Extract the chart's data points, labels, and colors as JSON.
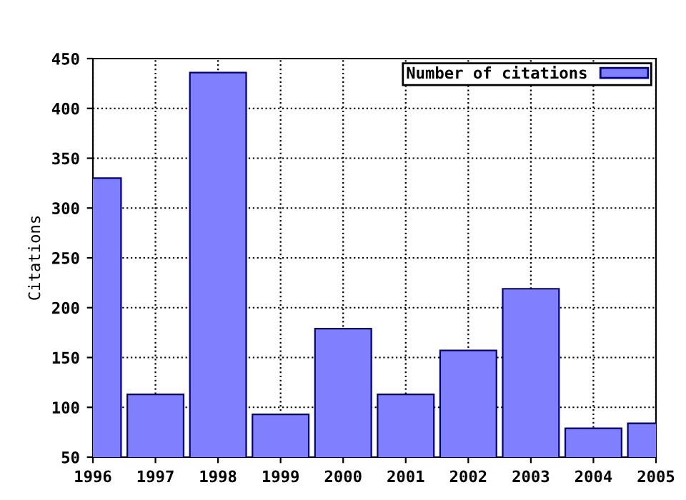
{
  "chart_data": {
    "type": "bar",
    "ylabel": "Citations",
    "x": [
      1996,
      1997,
      1998,
      1999,
      2000,
      2001,
      2002,
      2003,
      2004,
      2005
    ],
    "series": [
      {
        "name": "Number of citations",
        "color": "#8080ff",
        "values": [
          330,
          113,
          436,
          93,
          179,
          113,
          157,
          219,
          79,
          84
        ]
      }
    ],
    "xlim": [
      1996,
      2005
    ],
    "xticks": [
      1996,
      1997,
      1998,
      1999,
      2000,
      2001,
      2002,
      2003,
      2004,
      2005
    ],
    "ylim": [
      50,
      450
    ],
    "yticks": [
      50,
      100,
      150,
      200,
      250,
      300,
      350,
      400,
      450
    ],
    "grid": true,
    "line_style": "dotted",
    "legend": "top right"
  }
}
